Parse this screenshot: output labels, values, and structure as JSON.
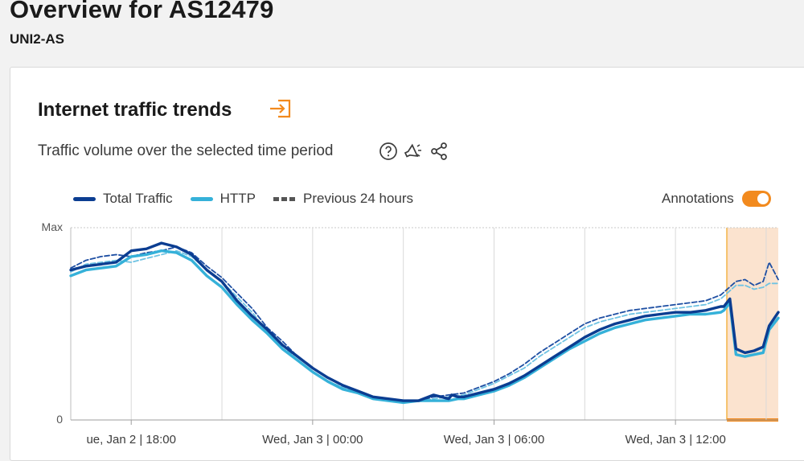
{
  "page": {
    "title": "Overview for AS12479",
    "subtitle": "UNI2-AS"
  },
  "card": {
    "title": "Internet traffic trends",
    "export_icon": "export-arrow-icon",
    "description": "Traffic volume over the selected time period",
    "icons": [
      "help-circle-icon",
      "megaphone-icon",
      "share-icon"
    ]
  },
  "legend": {
    "items": [
      {
        "label": "Total Traffic",
        "color": "#0b3d91",
        "style": "solid"
      },
      {
        "label": "HTTP",
        "color": "#35b1d9",
        "style": "solid"
      },
      {
        "label": "Previous 24 hours",
        "color": "#555555",
        "style": "dashed"
      }
    ],
    "annotations_label": "Annotations",
    "annotations_on": true
  },
  "colors": {
    "accent": "#f28a1e",
    "total": "#0b3d91",
    "http": "#35b1d9",
    "prev_total": "#1e4fa3",
    "prev_http": "#6fc3e3",
    "annotation_fill": "#fbe3cf",
    "annotation_edge": "#f5c26b"
  },
  "chart_data": {
    "type": "line",
    "x_unit": "hours since Jan 2 16:00",
    "ylim": [
      0,
      1
    ],
    "y_tick_labels": {
      "max": "Max",
      "min": "0"
    },
    "x_ticks": [
      {
        "x": 2,
        "label": "ue, Jan 2 | 18:00"
      },
      {
        "x": 8,
        "label": "Wed, Jan 3 | 00:00"
      },
      {
        "x": 14,
        "label": "Wed, Jan 3 | 06:00"
      },
      {
        "x": 20,
        "label": "Wed, Jan 3 | 12:00"
      }
    ],
    "grid_x": [
      2,
      5,
      8,
      11,
      14,
      17,
      20,
      23
    ],
    "xlim": [
      0,
      23.4
    ],
    "annotation_range": [
      21.7,
      23.4
    ],
    "series": [
      {
        "name": "Total Traffic",
        "x": [
          0.0,
          0.5,
          1.0,
          1.5,
          2.0,
          2.5,
          3.0,
          3.5,
          4.0,
          4.5,
          5.0,
          5.5,
          6.0,
          6.5,
          7.0,
          7.5,
          8.0,
          8.5,
          9.0,
          9.5,
          10.0,
          10.5,
          11.0,
          11.5,
          12.0,
          12.5,
          12.6,
          12.8,
          13.0,
          13.5,
          14.0,
          14.5,
          15.0,
          15.5,
          16.0,
          16.5,
          17.0,
          17.5,
          18.0,
          18.5,
          19.0,
          19.5,
          20.0,
          20.5,
          21.0,
          21.5,
          21.6,
          21.8,
          22.0,
          22.3,
          22.6,
          22.9,
          23.1,
          23.4
        ],
        "y": [
          0.78,
          0.8,
          0.81,
          0.82,
          0.88,
          0.89,
          0.92,
          0.9,
          0.86,
          0.78,
          0.72,
          0.62,
          0.54,
          0.47,
          0.39,
          0.33,
          0.27,
          0.22,
          0.18,
          0.15,
          0.12,
          0.11,
          0.1,
          0.1,
          0.13,
          0.11,
          0.13,
          0.12,
          0.12,
          0.14,
          0.16,
          0.19,
          0.23,
          0.28,
          0.33,
          0.38,
          0.43,
          0.47,
          0.5,
          0.52,
          0.54,
          0.55,
          0.56,
          0.56,
          0.57,
          0.59,
          0.59,
          0.63,
          0.37,
          0.35,
          0.36,
          0.38,
          0.49,
          0.56
        ]
      },
      {
        "name": "HTTP",
        "x": [
          0.0,
          0.5,
          1.0,
          1.5,
          2.0,
          2.5,
          3.0,
          3.5,
          4.0,
          4.5,
          5.0,
          5.5,
          6.0,
          6.5,
          7.0,
          7.5,
          8.0,
          8.5,
          9.0,
          9.5,
          10.0,
          10.5,
          11.0,
          11.5,
          12.0,
          12.5,
          12.8,
          13.0,
          13.5,
          14.0,
          14.5,
          15.0,
          15.5,
          16.0,
          16.5,
          17.0,
          17.5,
          18.0,
          18.5,
          19.0,
          19.5,
          20.0,
          20.5,
          21.0,
          21.5,
          21.6,
          21.8,
          22.0,
          22.3,
          22.6,
          22.9,
          23.1,
          23.4
        ],
        "y": [
          0.75,
          0.78,
          0.79,
          0.8,
          0.85,
          0.86,
          0.88,
          0.87,
          0.83,
          0.75,
          0.69,
          0.6,
          0.52,
          0.45,
          0.37,
          0.31,
          0.25,
          0.2,
          0.16,
          0.14,
          0.11,
          0.1,
          0.09,
          0.1,
          0.1,
          0.1,
          0.11,
          0.11,
          0.13,
          0.15,
          0.18,
          0.22,
          0.27,
          0.32,
          0.37,
          0.41,
          0.45,
          0.48,
          0.5,
          0.52,
          0.53,
          0.54,
          0.55,
          0.55,
          0.56,
          0.57,
          0.61,
          0.34,
          0.33,
          0.34,
          0.35,
          0.47,
          0.53
        ]
      },
      {
        "name": "Previous 24 hours",
        "dashed": true,
        "x": [
          0.0,
          0.5,
          1.0,
          1.5,
          2.0,
          2.5,
          3.0,
          3.5,
          4.0,
          4.5,
          5.0,
          5.5,
          6.0,
          6.5,
          7.0,
          7.5,
          8.0,
          8.5,
          9.0,
          9.5,
          10.0,
          10.5,
          11.0,
          11.5,
          12.0,
          12.5,
          13.0,
          13.5,
          14.0,
          14.5,
          15.0,
          15.5,
          16.0,
          16.5,
          17.0,
          17.5,
          18.0,
          18.5,
          19.0,
          19.5,
          20.0,
          20.5,
          21.0,
          21.5,
          22.0,
          22.3,
          22.6,
          22.9,
          23.1,
          23.4
        ],
        "y": [
          0.79,
          0.83,
          0.85,
          0.86,
          0.85,
          0.87,
          0.88,
          0.9,
          0.87,
          0.8,
          0.74,
          0.66,
          0.58,
          0.48,
          0.41,
          0.33,
          0.27,
          0.22,
          0.18,
          0.15,
          0.12,
          0.11,
          0.1,
          0.1,
          0.12,
          0.13,
          0.14,
          0.17,
          0.2,
          0.24,
          0.29,
          0.35,
          0.4,
          0.45,
          0.5,
          0.53,
          0.55,
          0.57,
          0.58,
          0.59,
          0.6,
          0.61,
          0.62,
          0.65,
          0.72,
          0.73,
          0.7,
          0.72,
          0.82,
          0.73
        ]
      },
      {
        "name": "Previous 24 hours (HTTP)",
        "dashed": true,
        "x": [
          0.0,
          0.5,
          1.0,
          1.5,
          2.0,
          2.5,
          3.0,
          3.5,
          4.0,
          4.5,
          5.0,
          5.5,
          6.0,
          6.5,
          7.0,
          7.5,
          8.0,
          8.5,
          9.0,
          9.5,
          10.0,
          10.5,
          11.0,
          11.5,
          12.0,
          12.5,
          13.0,
          13.5,
          14.0,
          14.5,
          15.0,
          15.5,
          16.0,
          16.5,
          17.0,
          17.5,
          18.0,
          18.5,
          19.0,
          19.5,
          20.0,
          20.5,
          21.0,
          21.5,
          22.0,
          22.3,
          22.6,
          22.9,
          23.1,
          23.4
        ],
        "y": [
          0.77,
          0.81,
          0.82,
          0.83,
          0.82,
          0.84,
          0.86,
          0.88,
          0.85,
          0.78,
          0.72,
          0.64,
          0.56,
          0.46,
          0.39,
          0.31,
          0.25,
          0.2,
          0.17,
          0.14,
          0.11,
          0.1,
          0.09,
          0.1,
          0.11,
          0.12,
          0.13,
          0.16,
          0.19,
          0.23,
          0.27,
          0.33,
          0.38,
          0.43,
          0.48,
          0.51,
          0.53,
          0.55,
          0.56,
          0.57,
          0.58,
          0.59,
          0.6,
          0.63,
          0.7,
          0.7,
          0.68,
          0.69,
          0.71,
          0.71
        ]
      }
    ]
  }
}
